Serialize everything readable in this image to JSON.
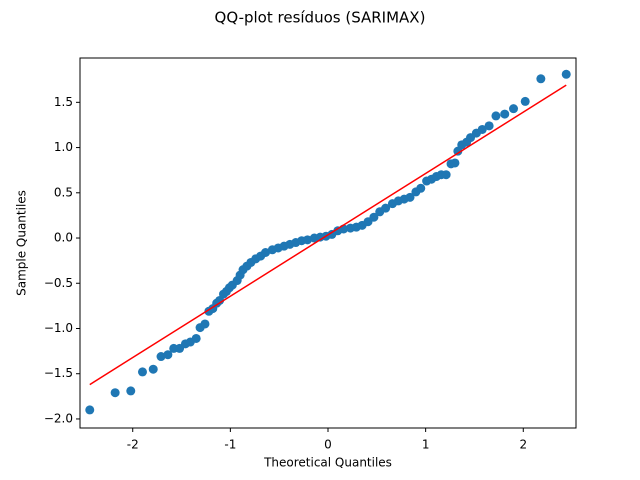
{
  "chart_data": {
    "type": "scatter",
    "title": "QQ-plot resíduos (SARIMAX)",
    "xlabel": "Theoretical Quantiles",
    "ylabel": "Sample Quantiles",
    "color": "#1f77b4",
    "x": [
      -2.44,
      -2.18,
      -2.02,
      -1.9,
      -1.79,
      -1.71,
      -1.64,
      -1.58,
      -1.52,
      -1.46,
      -1.41,
      -1.35,
      -1.31,
      -1.26,
      -1.22,
      -1.18,
      -1.14,
      -1.11,
      -1.07,
      -1.04,
      -1.01,
      -0.98,
      -0.93,
      -0.9,
      -0.87,
      -0.83,
      -0.79,
      -0.74,
      -0.69,
      -0.64,
      -0.57,
      -0.51,
      -0.45,
      -0.39,
      -0.33,
      -0.27,
      -0.21,
      -0.14,
      -0.08,
      -0.02,
      0.04,
      0.1,
      0.16,
      0.23,
      0.29,
      0.35,
      0.41,
      0.47,
      0.53,
      0.59,
      0.66,
      0.72,
      0.78,
      0.84,
      0.9,
      0.95,
      1.01,
      1.06,
      1.11,
      1.16,
      1.21,
      1.26,
      1.3,
      1.33,
      1.37,
      1.42,
      1.46,
      1.52,
      1.58,
      1.65,
      1.72,
      1.81,
      1.9,
      2.02,
      2.18,
      2.44
    ],
    "values": [
      -1.9,
      -1.71,
      -1.69,
      -1.48,
      -1.45,
      -1.31,
      -1.29,
      -1.22,
      -1.22,
      -1.17,
      -1.15,
      -1.11,
      -0.99,
      -0.95,
      -0.81,
      -0.78,
      -0.72,
      -0.69,
      -0.62,
      -0.59,
      -0.55,
      -0.52,
      -0.47,
      -0.41,
      -0.35,
      -0.31,
      -0.27,
      -0.23,
      -0.2,
      -0.16,
      -0.13,
      -0.11,
      -0.09,
      -0.07,
      -0.05,
      -0.03,
      -0.02,
      0.0,
      0.01,
      0.02,
      0.04,
      0.08,
      0.1,
      0.11,
      0.12,
      0.14,
      0.18,
      0.23,
      0.29,
      0.33,
      0.38,
      0.41,
      0.43,
      0.45,
      0.51,
      0.55,
      0.63,
      0.65,
      0.68,
      0.7,
      0.7,
      0.82,
      0.83,
      0.96,
      1.03,
      1.06,
      1.11,
      1.16,
      1.2,
      1.24,
      1.35,
      1.37,
      1.43,
      1.51,
      1.76,
      1.81
    ],
    "line": {
      "x": [
        -2.44,
        2.44
      ],
      "values": [
        -1.62,
        1.69
      ],
      "color": "#ff0000"
    },
    "xlim": [
      -2.54,
      2.54
    ],
    "ylim": [
      -2.1,
      1.99
    ],
    "xticks": [
      -2,
      -1,
      0,
      1,
      2
    ],
    "yticks": [
      {
        "value": -2,
        "label": "−2.0"
      },
      {
        "value": -1.5,
        "label": "−1.5"
      },
      {
        "value": -1,
        "label": "−1.0"
      },
      {
        "value": -0.5,
        "label": "−0.5"
      },
      {
        "value": 0,
        "label": "0.0"
      },
      {
        "value": 0.5,
        "label": "0.5"
      },
      {
        "value": 1,
        "label": "1.0"
      },
      {
        "value": 1.5,
        "label": "1.5"
      }
    ],
    "grid": false
  }
}
